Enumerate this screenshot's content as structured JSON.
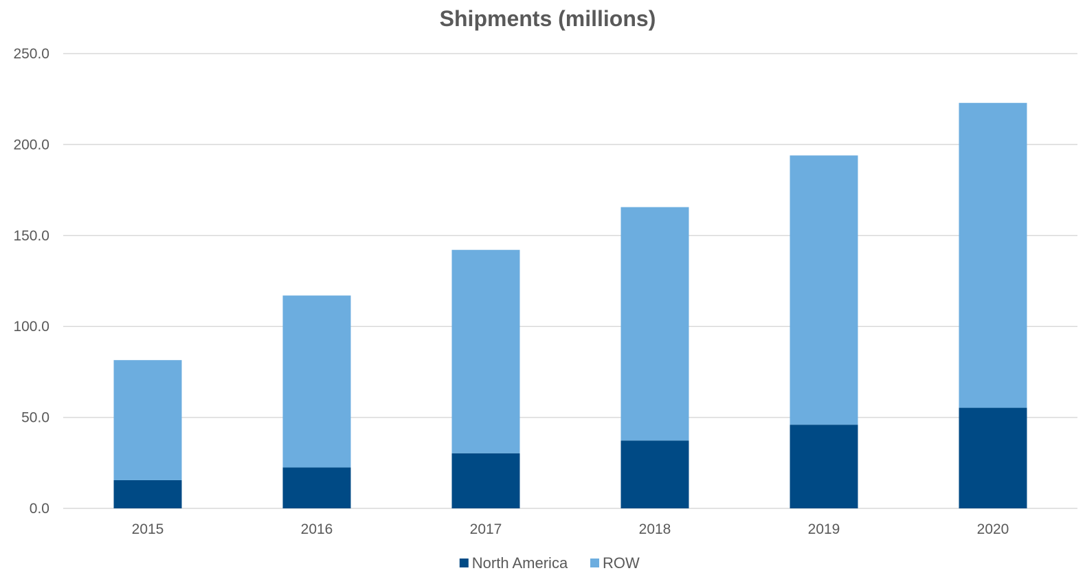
{
  "chart_data": {
    "type": "bar",
    "stacked": true,
    "title": "Shipments (millions)",
    "xlabel": "",
    "ylabel": "",
    "categories": [
      "2015",
      "2016",
      "2017",
      "2018",
      "2019",
      "2020"
    ],
    "series": [
      {
        "name": "North America",
        "color": "#004a85",
        "values": [
          15.5,
          22.5,
          30.3,
          37.3,
          46.0,
          55.3
        ]
      },
      {
        "name": "ROW",
        "color": "#6caddf",
        "values": [
          66.0,
          94.5,
          111.8,
          128.3,
          148.0,
          167.6
        ]
      }
    ],
    "ylim": [
      0,
      250
    ],
    "yticks": [
      "0.0",
      "50.0",
      "100.0",
      "150.0",
      "200.0",
      "250.0"
    ],
    "grid": true,
    "legend_position": "bottom"
  }
}
